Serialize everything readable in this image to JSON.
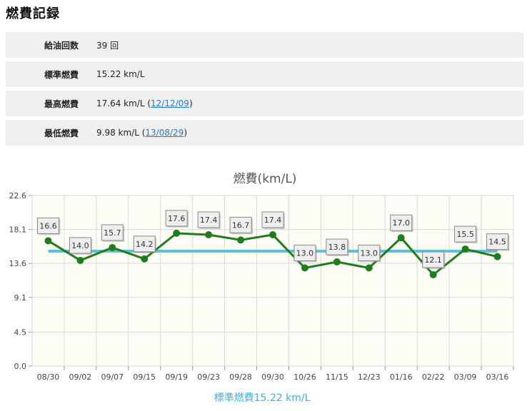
{
  "page": {
    "title": "燃費記録"
  },
  "stats": [
    {
      "label": "給油回数",
      "value": "39 回"
    },
    {
      "label": "標準燃費",
      "value": "15.22 km/L"
    },
    {
      "label": "最高燃費",
      "value": "17.64 km/L (",
      "link": "12/12/09",
      "suffix": ")"
    },
    {
      "label": "最低燃費",
      "value": "9.98 km/L (",
      "link": "13/08/29",
      "suffix": ")"
    }
  ],
  "colors": {
    "series": "#1e7d1e",
    "standard_line": "#5bc0de",
    "plot_bg": "#fdfcf5",
    "grid": "#d9d9d9"
  },
  "chart_data": {
    "type": "line",
    "title": "燃費(km/L)",
    "xlabel": "標準燃費15.22 km/L",
    "ylabel": "",
    "ylim": [
      0,
      22.6
    ],
    "yticks": [
      "0.0",
      "4.5",
      "9.1",
      "13.6",
      "18.1",
      "22.6"
    ],
    "grid": true,
    "categories": [
      "08/30",
      "09/02",
      "09/07",
      "09/15",
      "09/19",
      "09/23",
      "09/28",
      "09/30",
      "10/26",
      "11/15",
      "12/23",
      "01/16",
      "02/22",
      "03/09",
      "03/16"
    ],
    "series": [
      {
        "values": [
          16.6,
          14.0,
          15.7,
          14.2,
          17.6,
          17.4,
          16.7,
          17.4,
          13.0,
          13.8,
          13.0,
          17.0,
          12.1,
          15.5,
          14.5
        ],
        "labels": [
          "16.6",
          "14.0",
          "15.7",
          "14.2",
          "17.6",
          "17.4",
          "16.7",
          "17.4",
          "13.0",
          "13.8",
          "13.0",
          "17.0",
          "12.1",
          "15.5",
          "14.5"
        ]
      }
    ],
    "reference_line": {
      "value": 15.22
    }
  }
}
